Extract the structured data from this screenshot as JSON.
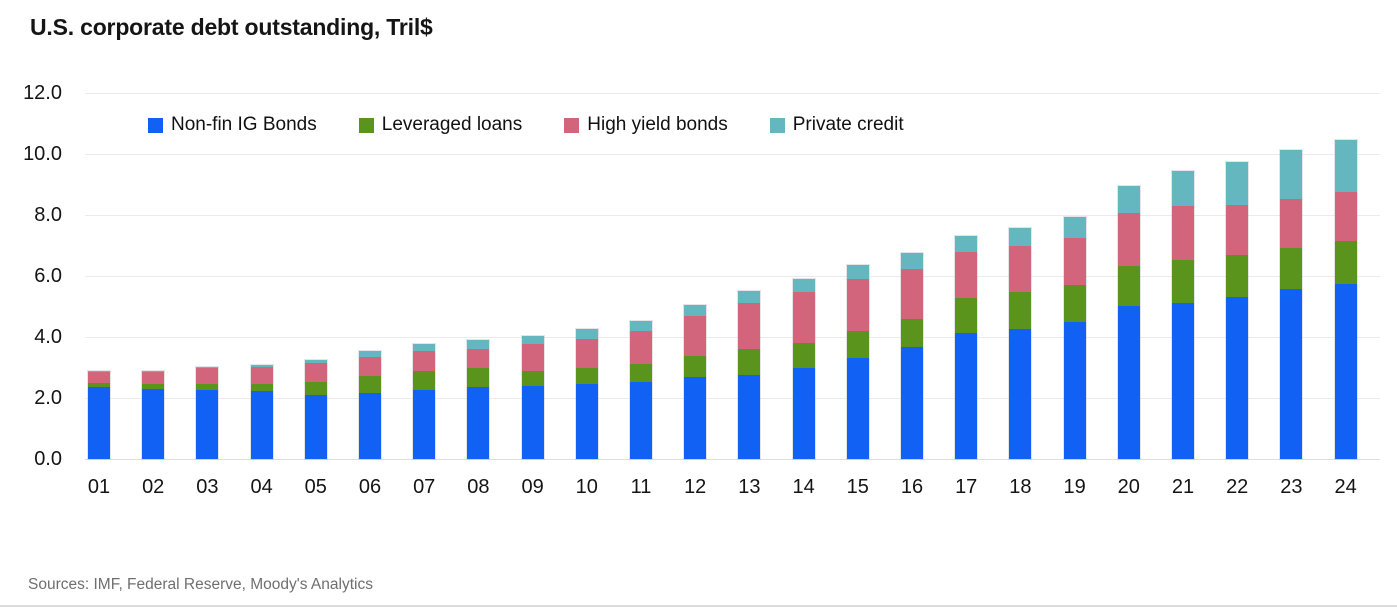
{
  "title": "U.S. corporate debt outstanding, Tril$",
  "source_note": "Sources: IMF, Federal Reserve, Moody's Analytics",
  "chart_data": {
    "type": "bar",
    "stacked": true,
    "title": "U.S. corporate debt outstanding, Tril$",
    "xlabel": "",
    "ylabel": "Tril$",
    "ylim": [
      0,
      12
    ],
    "yticks": [
      "0.0",
      "2.0",
      "4.0",
      "6.0",
      "8.0",
      "10.0",
      "12.0"
    ],
    "grid": "horizontal",
    "legend_position": "top-left-inside",
    "categories": [
      "01",
      "02",
      "03",
      "04",
      "05",
      "06",
      "07",
      "08",
      "09",
      "10",
      "11",
      "12",
      "13",
      "14",
      "15",
      "16",
      "17",
      "18",
      "19",
      "20",
      "21",
      "22",
      "23",
      "24"
    ],
    "series": [
      {
        "name": "Non-fin IG Bonds",
        "color": "#1161f4",
        "values": [
          2.35,
          2.3,
          2.27,
          2.22,
          2.1,
          2.15,
          2.28,
          2.36,
          2.41,
          2.47,
          2.52,
          2.7,
          2.77,
          2.97,
          3.3,
          3.66,
          4.13,
          4.27,
          4.5,
          5.03,
          5.12,
          5.3,
          5.57,
          5.73
        ]
      },
      {
        "name": "Leveraged loans",
        "color": "#5a941d",
        "values": [
          0.15,
          0.15,
          0.18,
          0.24,
          0.42,
          0.57,
          0.62,
          0.62,
          0.49,
          0.51,
          0.58,
          0.68,
          0.84,
          0.85,
          0.89,
          0.94,
          1.14,
          1.2,
          1.2,
          1.31,
          1.42,
          1.4,
          1.35,
          1.41
        ]
      },
      {
        "name": "High yield bonds",
        "color": "#d2647c",
        "values": [
          0.35,
          0.4,
          0.52,
          0.57,
          0.62,
          0.64,
          0.63,
          0.64,
          0.88,
          0.97,
          1.1,
          1.3,
          1.52,
          1.65,
          1.7,
          1.63,
          1.53,
          1.5,
          1.53,
          1.72,
          1.75,
          1.63,
          1.62,
          1.63
        ]
      },
      {
        "name": "Private credit",
        "color": "#64b6bf",
        "values": [
          0.05,
          0.05,
          0.06,
          0.07,
          0.1,
          0.17,
          0.25,
          0.28,
          0.25,
          0.32,
          0.33,
          0.38,
          0.38,
          0.43,
          0.48,
          0.52,
          0.51,
          0.6,
          0.7,
          0.88,
          1.15,
          1.42,
          1.58,
          1.7
        ]
      }
    ]
  }
}
